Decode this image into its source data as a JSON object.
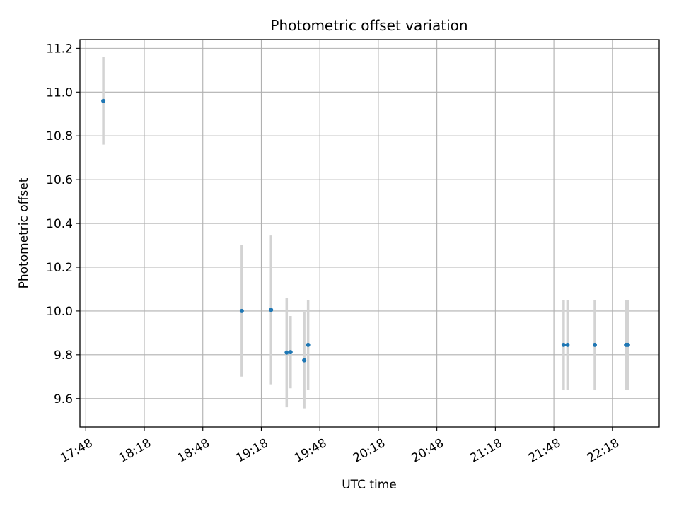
{
  "chart_data": {
    "type": "scatter",
    "title": "Photometric offset variation",
    "xlabel": "UTC time",
    "ylabel": "Photometric offset",
    "x_ticks": [
      "17:48",
      "18:18",
      "18:48",
      "19:18",
      "19:48",
      "20:18",
      "20:48",
      "21:18",
      "21:48",
      "22:18"
    ],
    "xlim": [
      "17:45",
      "22:42"
    ],
    "ylim": [
      9.47,
      11.24
    ],
    "y_ticks": [
      "9.6",
      "9.8",
      "10.0",
      "10.2",
      "10.4",
      "10.6",
      "10.8",
      "11.0",
      "11.2"
    ],
    "grid": true,
    "series": [
      {
        "marker_color": "#1f77b4",
        "errorbar_color": "#d3d3d3",
        "points": [
          {
            "x": "17:57",
            "y": 10.96,
            "yerr": 0.2
          },
          {
            "x": "19:08",
            "y": 10.0,
            "yerr": 0.3
          },
          {
            "x": "19:23",
            "y": 10.005,
            "yerr": 0.34
          },
          {
            "x": "19:31",
            "y": 9.81,
            "yerr": 0.25
          },
          {
            "x": "19:33",
            "y": 9.812,
            "yerr": 0.165
          },
          {
            "x": "19:40",
            "y": 9.775,
            "yerr": 0.22
          },
          {
            "x": "19:42",
            "y": 9.845,
            "yerr": 0.205
          },
          {
            "x": "21:53",
            "y": 9.845,
            "yerr": 0.205
          },
          {
            "x": "21:55",
            "y": 9.845,
            "yerr": 0.205
          },
          {
            "x": "22:09",
            "y": 9.845,
            "yerr": 0.205
          },
          {
            "x": "22:25",
            "y": 9.845,
            "yerr": 0.205
          },
          {
            "x": "22:26",
            "y": 9.845,
            "yerr": 0.205
          }
        ]
      }
    ]
  }
}
